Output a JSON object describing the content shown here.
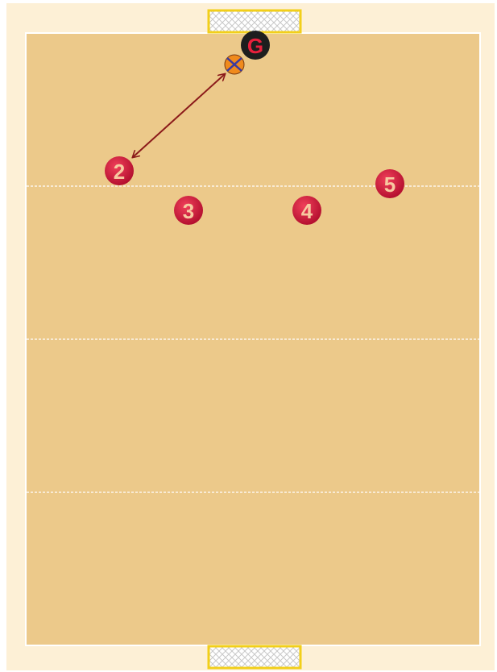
{
  "players": [
    {
      "label": "G"
    },
    {
      "label": "2"
    },
    {
      "label": "3"
    },
    {
      "label": "4"
    },
    {
      "label": "5"
    }
  ]
}
